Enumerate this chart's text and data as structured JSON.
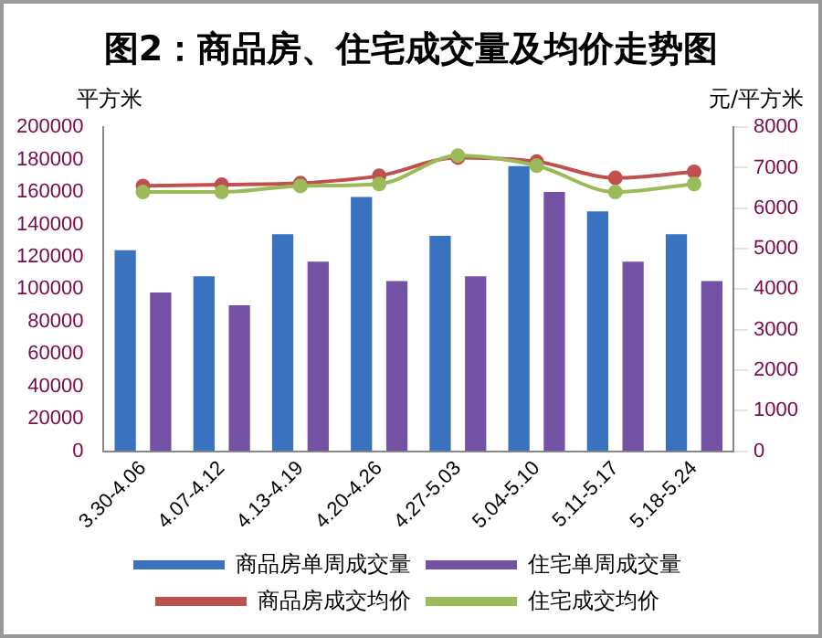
{
  "chart_data": {
    "type": "bar",
    "title": "图2：商品房、住宅成交量及均价走势图",
    "ylabel": "平方米",
    "y2label": "元/平方米",
    "categories": [
      "3.30-4.06",
      "4.07-4.12",
      "4.13-4.19",
      "4.20-4.26",
      "4.27-5.03",
      "5.04-5.10",
      "5.11-5.17",
      "5.18-5.24"
    ],
    "series": [
      {
        "name": "商品房单周成交量",
        "color": "#3a72c0",
        "values": [
          124000,
          108000,
          134000,
          157000,
          133000,
          176000,
          148000,
          134000
        ]
      },
      {
        "name": "住宅单周成交量",
        "color": "#7452a3",
        "values": [
          98000,
          90000,
          117000,
          105000,
          108000,
          160000,
          117000,
          105000
        ]
      },
      {
        "name": "商品房成交均价",
        "type": "line",
        "axis": "y2",
        "color": "#c0504d",
        "values": [
          6550,
          6580,
          6620,
          6800,
          7250,
          7150,
          6750,
          6900
        ]
      },
      {
        "name": "住宅成交均价",
        "type": "line",
        "axis": "y2",
        "color": "#9bbb59",
        "values": [
          6400,
          6400,
          6550,
          6600,
          7300,
          7050,
          6400,
          6600
        ]
      }
    ],
    "ylim": [
      0,
      200000
    ],
    "yticks": [
      0,
      20000,
      40000,
      60000,
      80000,
      100000,
      120000,
      140000,
      160000,
      180000,
      200000
    ],
    "y2lim": [
      0,
      8000
    ],
    "y2ticks": [
      0,
      1000,
      2000,
      3000,
      4000,
      5000,
      6000,
      7000,
      8000
    ],
    "grid": false,
    "legend": "bottom",
    "marker": "circle",
    "line_style": "solid"
  }
}
